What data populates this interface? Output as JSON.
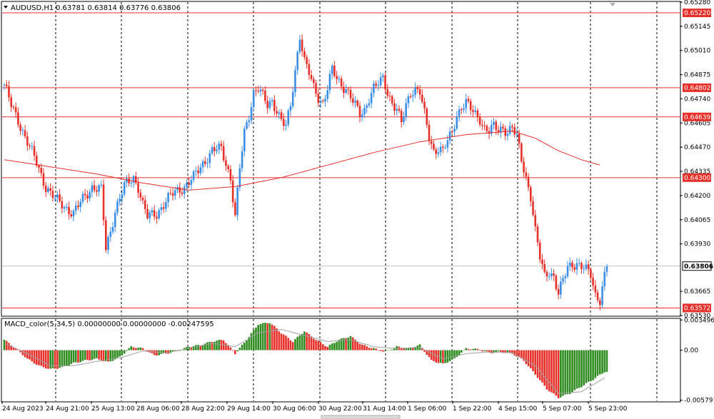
{
  "header": {
    "symbol_icon": "triangle-down-icon",
    "symbol": "AUDUSD,H1",
    "ohlc": "0.63781 0.63814 0.63776 0.63806",
    "macd_title": "MACD_color(5,34,5) 0.00000000 0.00000000 -0.00247595"
  },
  "colors": {
    "bull": "#3a8ee6",
    "bear": "#e8302a",
    "hline": "#e8302a",
    "ma": "#e8302a",
    "macd_pos": "#2e8b1f",
    "macd_neg": "#e8302a",
    "signal": "#a0a0a0",
    "grid": "#000000"
  },
  "chart_data": [
    {
      "type": "candlestick",
      "symbol": "AUDUSD",
      "timeframe": "H1",
      "ylim": [
        0.6353,
        0.6528
      ],
      "y_ticks": [
        "0.65280",
        "0.65145",
        "0.65010",
        "0.64875",
        "0.64740",
        "0.64605",
        "0.64470",
        "0.64335",
        "0.64200",
        "0.64065",
        "0.63930",
        "0.63665",
        "0.63530"
      ],
      "x_ticks": [
        "24 Aug 2023",
        "24 Aug 21:00",
        "25 Aug 13:00",
        "28 Aug 06:00",
        "28 Aug 22:00",
        "29 Aug 14:00",
        "30 Aug 06:00",
        "30 Aug 22:00",
        "31 Aug 14:00",
        "1 Sep 06:00",
        "1 Sep 22:00",
        "4 Sep 15:00",
        "5 Sep 07:00",
        "5 Sep 23:00"
      ],
      "horizontal_levels": [
        {
          "price": 0.6522,
          "label": "0.65220"
        },
        {
          "price": 0.64802,
          "label": "0.64802"
        },
        {
          "price": 0.64639,
          "label": "0.64639"
        },
        {
          "price": 0.643,
          "label": "0.64300"
        },
        {
          "price": 0.63572,
          "label": "0.63572"
        }
      ],
      "current_price": {
        "price": 0.63806,
        "label": "0.63806"
      },
      "price_path": [
        [
          0,
          0.6482
        ],
        [
          3,
          0.647
        ],
        [
          6,
          0.6462
        ],
        [
          10,
          0.645
        ],
        [
          14,
          0.6438
        ],
        [
          18,
          0.6425
        ],
        [
          22,
          0.6418
        ],
        [
          26,
          0.6414
        ],
        [
          30,
          0.641
        ],
        [
          34,
          0.6418
        ],
        [
          38,
          0.6425
        ],
        [
          42,
          0.6423
        ],
        [
          44,
          0.639
        ],
        [
          46,
          0.64
        ],
        [
          48,
          0.6412
        ],
        [
          52,
          0.6425
        ],
        [
          56,
          0.643
        ],
        [
          58,
          0.6425
        ],
        [
          60,
          0.6415
        ],
        [
          62,
          0.6408
        ],
        [
          66,
          0.641
        ],
        [
          70,
          0.6417
        ],
        [
          74,
          0.6422
        ],
        [
          78,
          0.6425
        ],
        [
          82,
          0.643
        ],
        [
          86,
          0.6438
        ],
        [
          90,
          0.6445
        ],
        [
          94,
          0.6446
        ],
        [
          98,
          0.643
        ],
        [
          100,
          0.6408
        ],
        [
          102,
          0.6435
        ],
        [
          104,
          0.6455
        ],
        [
          106,
          0.6465
        ],
        [
          108,
          0.6478
        ],
        [
          110,
          0.648
        ],
        [
          112,
          0.6475
        ],
        [
          114,
          0.647
        ],
        [
          116,
          0.6473
        ],
        [
          118,
          0.6468
        ],
        [
          120,
          0.6462
        ],
        [
          122,
          0.6458
        ],
        [
          124,
          0.647
        ],
        [
          126,
          0.649
        ],
        [
          128,
          0.651
        ],
        [
          130,
          0.6495
        ],
        [
          132,
          0.6488
        ],
        [
          134,
          0.648
        ],
        [
          136,
          0.6475
        ],
        [
          138,
          0.6472
        ],
        [
          140,
          0.648
        ],
        [
          142,
          0.649
        ],
        [
          144,
          0.6485
        ],
        [
          146,
          0.6482
        ],
        [
          148,
          0.648
        ],
        [
          150,
          0.6475
        ],
        [
          152,
          0.647
        ],
        [
          154,
          0.6465
        ],
        [
          156,
          0.6468
        ],
        [
          158,
          0.6475
        ],
        [
          160,
          0.648
        ],
        [
          162,
          0.6482
        ],
        [
          164,
          0.6485
        ],
        [
          166,
          0.6478
        ],
        [
          168,
          0.6472
        ],
        [
          170,
          0.6468
        ],
        [
          172,
          0.646
        ],
        [
          174,
          0.647
        ],
        [
          176,
          0.6478
        ],
        [
          178,
          0.648
        ],
        [
          180,
          0.6478
        ],
        [
          182,
          0.6465
        ],
        [
          184,
          0.6452
        ],
        [
          186,
          0.6445
        ],
        [
          188,
          0.6447
        ],
        [
          190,
          0.6445
        ],
        [
          192,
          0.645
        ],
        [
          194,
          0.6455
        ],
        [
          196,
          0.6465
        ],
        [
          198,
          0.647
        ],
        [
          200,
          0.6472
        ],
        [
          202,
          0.6468
        ],
        [
          204,
          0.6465
        ],
        [
          206,
          0.6463
        ],
        [
          208,
          0.6458
        ],
        [
          210,
          0.6456
        ],
        [
          212,
          0.6458
        ],
        [
          214,
          0.6456
        ],
        [
          216,
          0.6458
        ],
        [
          218,
          0.6456
        ],
        [
          220,
          0.6458
        ],
        [
          222,
          0.6452
        ],
        [
          224,
          0.644
        ],
        [
          226,
          0.643
        ],
        [
          228,
          0.642
        ],
        [
          230,
          0.64
        ],
        [
          232,
          0.6385
        ],
        [
          234,
          0.6375
        ],
        [
          236,
          0.6378
        ],
        [
          238,
          0.6375
        ],
        [
          240,
          0.6365
        ],
        [
          242,
          0.6372
        ],
        [
          244,
          0.638
        ],
        [
          246,
          0.6382
        ],
        [
          248,
          0.6382
        ],
        [
          250,
          0.638
        ],
        [
          252,
          0.6378
        ],
        [
          254,
          0.6376
        ],
        [
          256,
          0.6365
        ],
        [
          258,
          0.6362
        ],
        [
          260,
          0.6375
        ],
        [
          261,
          0.63806
        ]
      ],
      "moving_average": [
        [
          0,
          0.644
        ],
        [
          20,
          0.6436
        ],
        [
          40,
          0.6432
        ],
        [
          60,
          0.6427
        ],
        [
          80,
          0.6423
        ],
        [
          100,
          0.6425
        ],
        [
          120,
          0.643
        ],
        [
          140,
          0.6437
        ],
        [
          160,
          0.6444
        ],
        [
          180,
          0.645
        ],
        [
          200,
          0.6454
        ],
        [
          220,
          0.6456
        ],
        [
          230,
          0.6452
        ],
        [
          240,
          0.6445
        ],
        [
          250,
          0.644
        ],
        [
          258,
          0.6437
        ]
      ]
    },
    {
      "type": "bar",
      "name": "MACD_color(5,34,5)",
      "ylim": [
        -0.0059,
        0.0036
      ],
      "y_ticks": [
        "0.0034961",
        "0.00",
        "-0.0057911"
      ],
      "histogram": [
        [
          0,
          0.0012
        ],
        [
          5,
          0.0002
        ],
        [
          10,
          -0.001
        ],
        [
          15,
          -0.0018
        ],
        [
          20,
          -0.0022
        ],
        [
          25,
          -0.002
        ],
        [
          30,
          -0.0015
        ],
        [
          35,
          -0.0012
        ],
        [
          40,
          -0.001
        ],
        [
          45,
          -0.0014
        ],
        [
          50,
          -0.0008
        ],
        [
          55,
          0.0004
        ],
        [
          60,
          0.0002
        ],
        [
          65,
          -0.0006
        ],
        [
          70,
          -0.0004
        ],
        [
          75,
          -0.0001
        ],
        [
          80,
          0.0004
        ],
        [
          85,
          0.0006
        ],
        [
          90,
          0.001
        ],
        [
          95,
          0.0012
        ],
        [
          100,
          -0.0004
        ],
        [
          105,
          0.0012
        ],
        [
          110,
          0.003
        ],
        [
          115,
          0.0032
        ],
        [
          120,
          0.002
        ],
        [
          125,
          0.001
        ],
        [
          130,
          0.0022
        ],
        [
          135,
          0.0012
        ],
        [
          140,
          0.0004
        ],
        [
          145,
          0.0012
        ],
        [
          150,
          0.0016
        ],
        [
          155,
          0.0006
        ],
        [
          160,
          0.0002
        ],
        [
          165,
          -0.0002
        ],
        [
          170,
          0.0004
        ],
        [
          175,
          0.0002
        ],
        [
          180,
          0.0006
        ],
        [
          185,
          -0.0012
        ],
        [
          190,
          -0.0016
        ],
        [
          195,
          -0.001
        ],
        [
          200,
          0.0002
        ],
        [
          205,
          0.0001
        ],
        [
          210,
          -0.0003
        ],
        [
          215,
          -0.0002
        ],
        [
          220,
          -0.0004
        ],
        [
          225,
          -0.0012
        ],
        [
          230,
          -0.0028
        ],
        [
          235,
          -0.0045
        ],
        [
          240,
          -0.0055
        ],
        [
          245,
          -0.005
        ],
        [
          250,
          -0.0042
        ],
        [
          255,
          -0.0034
        ],
        [
          260,
          -0.0025
        ]
      ],
      "signal": [
        [
          0,
          0.0008
        ],
        [
          10,
          -0.0004
        ],
        [
          20,
          -0.0018
        ],
        [
          30,
          -0.0018
        ],
        [
          40,
          -0.0013
        ],
        [
          50,
          -0.0009
        ],
        [
          60,
          -0.0001
        ],
        [
          70,
          -0.0003
        ],
        [
          80,
          0.0002
        ],
        [
          90,
          0.0008
        ],
        [
          100,
          0.0004
        ],
        [
          110,
          0.002
        ],
        [
          120,
          0.0024
        ],
        [
          130,
          0.0017
        ],
        [
          140,
          0.001
        ],
        [
          150,
          0.0012
        ],
        [
          160,
          0.0004
        ],
        [
          170,
          0.0002
        ],
        [
          180,
          0.0003
        ],
        [
          190,
          -0.001
        ],
        [
          200,
          -0.0004
        ],
        [
          210,
          -0.0002
        ],
        [
          220,
          -0.0003
        ],
        [
          230,
          -0.0018
        ],
        [
          240,
          -0.005
        ],
        [
          250,
          -0.0048
        ],
        [
          260,
          -0.0032
        ]
      ]
    }
  ]
}
